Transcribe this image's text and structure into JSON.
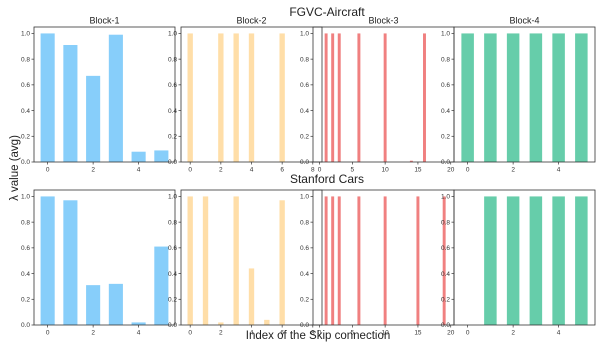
{
  "figure": {
    "ylabel": "λ value (avg)",
    "xlabel": "Index of the Skip connection"
  },
  "chart_data": [
    {
      "type": "bar",
      "row": "FGVC-Aircraft",
      "title": "Block-1",
      "color": "#87CEFA",
      "x": [
        0,
        1,
        2,
        3,
        4,
        5
      ],
      "values": [
        1.0,
        0.91,
        0.67,
        0.99,
        0.08,
        0.09
      ],
      "xlim": [
        -0.6,
        5.6
      ],
      "xticks": [
        0,
        2,
        4
      ],
      "ylim": [
        0,
        1.05
      ],
      "yticks": [
        0.0,
        0.2,
        0.4,
        0.6,
        0.8,
        1.0
      ]
    },
    {
      "type": "bar",
      "row": "FGVC-Aircraft",
      "title": "Block-2",
      "color": "#FFDEA8",
      "x": [
        0,
        1,
        2,
        3,
        4,
        5,
        6,
        7,
        8
      ],
      "values": [
        1.0,
        0.0,
        1.0,
        1.0,
        1.0,
        0.0,
        1.0,
        0.0,
        0.0
      ],
      "xlim": [
        -0.6,
        8.6
      ],
      "xticks": [
        0,
        2,
        4,
        6,
        8
      ],
      "ylim": [
        0,
        1.05
      ],
      "yticks": [
        0.0,
        0.2,
        0.4,
        0.6,
        0.8,
        1.0
      ]
    },
    {
      "type": "bar",
      "row": "FGVC-Aircraft",
      "title": "Block-3",
      "color": "#F08080",
      "x": [
        0,
        1,
        2,
        3,
        4,
        5,
        6,
        7,
        8,
        9,
        10,
        11,
        12,
        13,
        14,
        15,
        16,
        17,
        18,
        19
      ],
      "values": [
        0.0,
        1.0,
        1.0,
        1.0,
        0.0,
        0.0,
        1.0,
        0.0,
        0.0,
        0.0,
        1.0,
        0.0,
        0.0,
        0.0,
        0.01,
        0.0,
        1.0,
        0.0,
        0.0,
        0.0
      ],
      "xlim": [
        -1.0,
        20.5
      ],
      "xticks": [
        0,
        5,
        10,
        15,
        20
      ],
      "ylim": [
        0,
        1.05
      ],
      "yticks": [
        0.0,
        0.2,
        0.4,
        0.6,
        0.8,
        1.0
      ]
    },
    {
      "type": "bar",
      "row": "FGVC-Aircraft",
      "title": "Block-4",
      "color": "#66CDAA",
      "x": [
        0,
        1,
        2,
        3,
        4,
        5
      ],
      "values": [
        1.0,
        1.0,
        1.0,
        1.0,
        1.0,
        1.0
      ],
      "xlim": [
        -0.6,
        5.6
      ],
      "xticks": [
        0,
        2,
        4
      ],
      "ylim": [
        0,
        1.05
      ],
      "yticks": [
        0.0,
        0.2,
        0.4,
        0.6,
        0.8,
        1.0
      ]
    },
    {
      "type": "bar",
      "row": "Stanford Cars",
      "title": "",
      "color": "#87CEFA",
      "x": [
        0,
        1,
        2,
        3,
        4,
        5
      ],
      "values": [
        1.0,
        0.97,
        0.31,
        0.32,
        0.02,
        0.61
      ],
      "xlim": [
        -0.6,
        5.6
      ],
      "xticks": [
        0,
        2,
        4
      ],
      "ylim": [
        0,
        1.05
      ],
      "yticks": [
        0.0,
        0.2,
        0.4,
        0.6,
        0.8,
        1.0
      ]
    },
    {
      "type": "bar",
      "row": "Stanford Cars",
      "title": "",
      "color": "#FFDEA8",
      "x": [
        0,
        1,
        2,
        3,
        4,
        5,
        6,
        7,
        8
      ],
      "values": [
        1.0,
        1.0,
        0.02,
        1.0,
        0.44,
        0.04,
        0.97,
        0.0,
        0.0
      ],
      "xlim": [
        -0.6,
        8.6
      ],
      "xticks": [
        0,
        2,
        4,
        6,
        8
      ],
      "ylim": [
        0,
        1.05
      ],
      "yticks": [
        0.0,
        0.2,
        0.4,
        0.6,
        0.8,
        1.0
      ]
    },
    {
      "type": "bar",
      "row": "Stanford Cars",
      "title": "",
      "color": "#F08080",
      "x": [
        0,
        1,
        2,
        3,
        4,
        5,
        6,
        7,
        8,
        9,
        10,
        11,
        12,
        13,
        14,
        15,
        16,
        17,
        18,
        19
      ],
      "values": [
        0.0,
        1.0,
        1.0,
        1.0,
        0.0,
        0.0,
        1.0,
        0.0,
        0.0,
        0.0,
        1.0,
        0.0,
        0.0,
        0.0,
        0.0,
        1.0,
        0.0,
        0.0,
        0.0,
        1.0
      ],
      "xlim": [
        -1.0,
        20.5
      ],
      "xticks": [
        0,
        5,
        10,
        15,
        20
      ],
      "ylim": [
        0,
        1.05
      ],
      "yticks": [
        0.0,
        0.2,
        0.4,
        0.6,
        0.8,
        1.0
      ]
    },
    {
      "type": "bar",
      "row": "Stanford Cars",
      "title": "",
      "color": "#66CDAA",
      "x": [
        0,
        1,
        2,
        3,
        4,
        5
      ],
      "values": [
        0.0,
        1.0,
        1.0,
        1.0,
        1.0,
        1.0
      ],
      "xlim": [
        -0.6,
        5.6
      ],
      "xticks": [
        0,
        2,
        4
      ],
      "ylim": [
        0,
        1.05
      ],
      "yticks": [
        0.0,
        0.2,
        0.4,
        0.6,
        0.8,
        1.0
      ]
    }
  ]
}
